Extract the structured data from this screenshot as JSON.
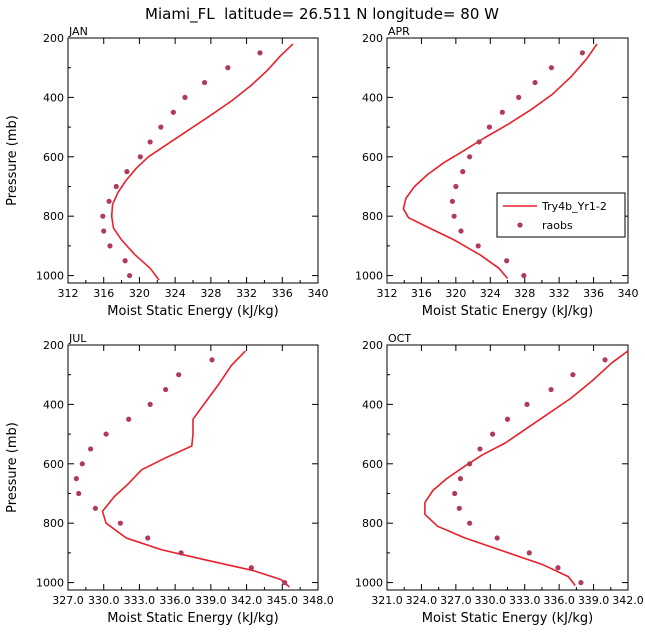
{
  "figure_title": "Miami_FL  latitude= 26.511 N longitude= 80 W",
  "colors": {
    "model": "#e8202a",
    "obs": "#b03a5b",
    "axis": "#000000"
  },
  "legend": {
    "model_label": "Try4b_Yr1-2",
    "obs_label": "raobs"
  },
  "chart_data": [
    {
      "type": "line",
      "title": "JAN",
      "xlabel": "Moist Static Energy (kJ/kg)",
      "ylabel": "Pressure (mb)",
      "xlim": [
        312,
        340
      ],
      "ylim": [
        200,
        1025
      ],
      "xticks": [
        312,
        316,
        320,
        324,
        328,
        332,
        336,
        340
      ],
      "xtick_labels": [
        "312",
        "316",
        "320",
        "324",
        "328",
        "332",
        "336",
        "340"
      ],
      "yticks": [
        200,
        400,
        600,
        800,
        1000
      ],
      "ytick_labels": [
        "200",
        "400",
        "600",
        "800",
        "1000"
      ],
      "series": [
        {
          "name": "Try4b_Yr1-2",
          "kind": "line",
          "x": [
            322.2,
            321.2,
            319.5,
            318.0,
            317.1,
            316.9,
            317.0,
            317.6,
            318.5,
            319.6,
            321.0,
            323.0,
            325.5,
            328.0,
            330.4,
            332.5,
            334.3,
            335.8,
            337.2
          ],
          "y": [
            1015,
            975,
            930,
            880,
            840,
            800,
            760,
            720,
            680,
            640,
            600,
            560,
            510,
            460,
            410,
            360,
            310,
            260,
            220
          ]
        },
        {
          "name": "raobs",
          "kind": "points",
          "x": [
            318.9,
            318.4,
            316.7,
            316.0,
            315.9,
            316.6,
            317.4,
            318.6,
            320.1,
            321.2,
            322.4,
            323.8,
            325.1,
            327.3,
            329.9,
            333.5
          ],
          "y": [
            1000,
            950,
            900,
            850,
            800,
            750,
            700,
            650,
            600,
            550,
            500,
            450,
            400,
            350,
            300,
            250
          ]
        }
      ]
    },
    {
      "type": "line",
      "title": "APR",
      "xlabel": "Moist Static Energy (kJ/kg)",
      "ylabel": "",
      "xlim": [
        312,
        340
      ],
      "ylim": [
        200,
        1025
      ],
      "xticks": [
        312,
        316,
        320,
        324,
        328,
        332,
        336,
        340
      ],
      "xtick_labels": [
        "312",
        "316",
        "320",
        "324",
        "328",
        "332",
        "336",
        "340"
      ],
      "yticks": [
        200,
        400,
        600,
        800,
        1000
      ],
      "ytick_labels": [
        "200",
        "400",
        "600",
        "800",
        "1000"
      ],
      "legend_position": "right-middle",
      "series": [
        {
          "name": "Try4b_Yr1-2",
          "kind": "line",
          "x": [
            326.0,
            325.0,
            322.8,
            319.8,
            316.6,
            314.5,
            313.9,
            314.2,
            315.2,
            316.7,
            318.6,
            320.9,
            323.4,
            326.1,
            328.8,
            331.2,
            333.4,
            335.2,
            336.4
          ],
          "y": [
            1010,
            975,
            930,
            880,
            835,
            805,
            775,
            740,
            700,
            660,
            620,
            580,
            535,
            490,
            440,
            390,
            330,
            270,
            220
          ]
        },
        {
          "name": "raobs",
          "kind": "points",
          "x": [
            327.9,
            325.9,
            322.6,
            320.6,
            319.8,
            319.6,
            320.0,
            320.8,
            321.6,
            322.7,
            323.9,
            325.4,
            327.3,
            329.2,
            331.1,
            334.7
          ],
          "y": [
            1000,
            950,
            900,
            850,
            800,
            750,
            700,
            650,
            600,
            550,
            500,
            450,
            400,
            350,
            300,
            250
          ]
        }
      ]
    },
    {
      "type": "line",
      "title": "JUL",
      "xlabel": "Moist Static Energy (kJ/kg)",
      "ylabel": "Pressure (mb)",
      "xlim": [
        327.0,
        348.0
      ],
      "ylim": [
        200,
        1025
      ],
      "xticks": [
        327.0,
        330.0,
        333.0,
        336.0,
        339.0,
        342.0,
        345.0,
        348.0
      ],
      "xtick_labels": [
        "327.0",
        "330.0",
        "333.0",
        "336.0",
        "339.0",
        "342.0",
        "345.0",
        "348.0"
      ],
      "yticks": [
        200,
        400,
        600,
        800,
        1000
      ],
      "ytick_labels": [
        "200",
        "400",
        "600",
        "800",
        "1000"
      ],
      "series": [
        {
          "name": "Try4b_Yr1-2",
          "kind": "line",
          "x": [
            345.6,
            344.9,
            342.6,
            338.7,
            334.9,
            331.9,
            330.2,
            329.9,
            330.9,
            332.0,
            333.2,
            335.2,
            337.4,
            337.5,
            337.5,
            338.6,
            339.7,
            340.7,
            341.9
          ],
          "y": [
            1015,
            990,
            960,
            925,
            890,
            850,
            800,
            760,
            710,
            670,
            620,
            580,
            540,
            500,
            450,
            390,
            330,
            270,
            220
          ]
        },
        {
          "name": "raobs",
          "kind": "points",
          "x": [
            345.2,
            342.4,
            336.5,
            333.7,
            331.4,
            329.3,
            327.9,
            327.7,
            328.2,
            328.9,
            330.2,
            332.1,
            333.9,
            335.2,
            336.3,
            339.1
          ],
          "y": [
            1000,
            950,
            900,
            850,
            800,
            750,
            700,
            650,
            600,
            550,
            500,
            450,
            400,
            350,
            300,
            250
          ]
        }
      ]
    },
    {
      "type": "line",
      "title": "OCT",
      "xlabel": "Moist Static Energy (kJ/kg)",
      "ylabel": "",
      "xlim": [
        321.0,
        342.0
      ],
      "ylim": [
        200,
        1025
      ],
      "xticks": [
        321.0,
        324.0,
        327.0,
        330.0,
        333.0,
        336.0,
        339.0,
        342.0
      ],
      "xtick_labels": [
        "321.0",
        "324.0",
        "327.0",
        "330.0",
        "333.0",
        "336.0",
        "339.0",
        "342.0"
      ],
      "yticks": [
        200,
        400,
        600,
        800,
        1000
      ],
      "ytick_labels": [
        "200",
        "400",
        "600",
        "800",
        "1000"
      ],
      "series": [
        {
          "name": "Try4b_Yr1-2",
          "kind": "line",
          "x": [
            337.4,
            336.8,
            334.6,
            331.2,
            327.8,
            325.4,
            324.3,
            324.3,
            325.0,
            326.2,
            327.7,
            329.3,
            331.3,
            333.2,
            335.1,
            337.0,
            338.9,
            340.6,
            342.0
          ],
          "y": [
            1010,
            980,
            940,
            895,
            850,
            810,
            770,
            730,
            690,
            650,
            610,
            570,
            530,
            480,
            430,
            380,
            320,
            260,
            220
          ]
        },
        {
          "name": "raobs",
          "kind": "points",
          "x": [
            337.9,
            335.9,
            333.4,
            330.6,
            328.2,
            327.3,
            326.9,
            327.4,
            328.2,
            329.1,
            330.2,
            331.5,
            333.2,
            335.3,
            337.2,
            340.0
          ],
          "y": [
            1000,
            950,
            900,
            850,
            800,
            750,
            700,
            650,
            600,
            550,
            500,
            450,
            400,
            350,
            300,
            250
          ]
        }
      ]
    }
  ]
}
